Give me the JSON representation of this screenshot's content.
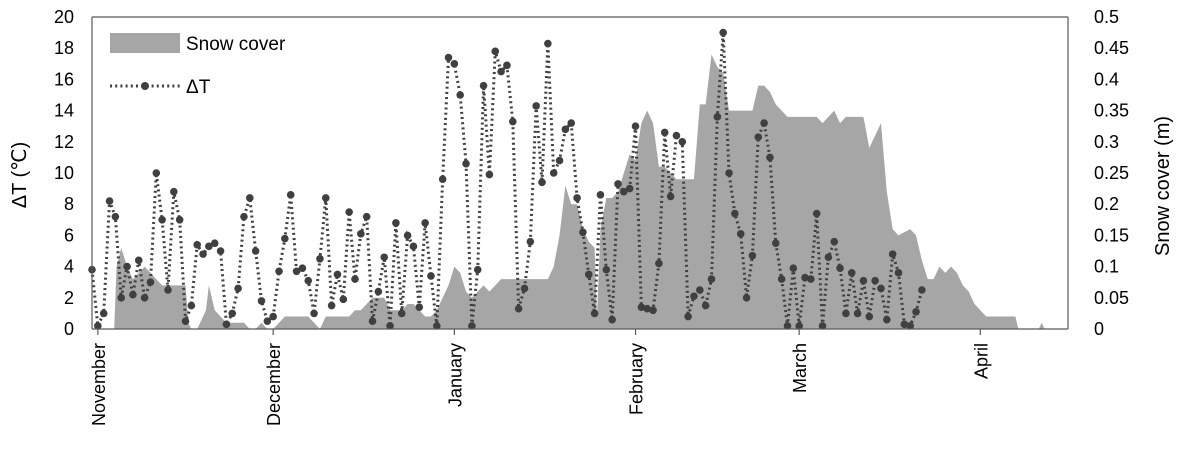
{
  "chart_data": {
    "type": "line",
    "title": "",
    "xlabel": "",
    "ylabel": "ΔT (℃)",
    "y2label": "Snow cover (m)",
    "ylim": [
      0,
      20
    ],
    "y2lim": [
      0,
      0.5
    ],
    "yticks": [
      "0",
      "2",
      "4",
      "6",
      "8",
      "10",
      "12",
      "14",
      "16",
      "18",
      "20"
    ],
    "y2ticks": [
      "0",
      "0.05",
      "0.1",
      "0.15",
      "0.2",
      "0.25",
      "0.3",
      "0.35",
      "0.4",
      "0.45",
      "0.5"
    ],
    "xlim": [
      0,
      167
    ],
    "months": [
      {
        "label": "November",
        "day": 1
      },
      {
        "label": "December",
        "day": 31
      },
      {
        "label": "January",
        "day": 62
      },
      {
        "label": "February",
        "day": 93
      },
      {
        "label": "March",
        "day": 121
      },
      {
        "label": "April",
        "day": 152
      }
    ],
    "legend_position": "top-left",
    "grid": false,
    "series": [
      {
        "name": "Snow cover",
        "kind": "area",
        "color": "#a6a6a6",
        "axis": "right",
        "points": [
          [
            0,
            0
          ],
          [
            3.8,
            0
          ],
          [
            4.2,
            0.1
          ],
          [
            5,
            0.13
          ],
          [
            6,
            0.1
          ],
          [
            7,
            0.08
          ],
          [
            8,
            0.09
          ],
          [
            9,
            0.1
          ],
          [
            10,
            0.09
          ],
          [
            11,
            0.08
          ],
          [
            12,
            0.07
          ],
          [
            15,
            0.07
          ],
          [
            16,
            0.07
          ],
          [
            16.5,
            0.01
          ],
          [
            17,
            0
          ],
          [
            18,
            0
          ],
          [
            19.5,
            0.03
          ],
          [
            20,
            0.07
          ],
          [
            21,
            0.03
          ],
          [
            22,
            0.02
          ],
          [
            23,
            0.01
          ],
          [
            25,
            0.01
          ],
          [
            26,
            0.01
          ],
          [
            27,
            0
          ],
          [
            28,
            0
          ],
          [
            29,
            0.01
          ],
          [
            30,
            0
          ],
          [
            31,
            0
          ],
          [
            32,
            0.01
          ],
          [
            33,
            0.02
          ],
          [
            35,
            0.02
          ],
          [
            36,
            0.02
          ],
          [
            37,
            0.02
          ],
          [
            38,
            0.01
          ],
          [
            39,
            0
          ],
          [
            40,
            0.02
          ],
          [
            41,
            0.02
          ],
          [
            42,
            0.02
          ],
          [
            43,
            0.02
          ],
          [
            44,
            0.02
          ],
          [
            45,
            0.03
          ],
          [
            46,
            0.03
          ],
          [
            47,
            0.04
          ],
          [
            48,
            0.05
          ],
          [
            49,
            0.05
          ],
          [
            50,
            0.05
          ],
          [
            51,
            0.03
          ],
          [
            52,
            0.03
          ],
          [
            53,
            0.03
          ],
          [
            54,
            0.04
          ],
          [
            55,
            0.04
          ],
          [
            56,
            0.03
          ],
          [
            57,
            0.02
          ],
          [
            58,
            0.02
          ],
          [
            59,
            0.03
          ],
          [
            60,
            0.05
          ],
          [
            61,
            0.07
          ],
          [
            62,
            0.1
          ],
          [
            63,
            0.09
          ],
          [
            64,
            0.06
          ],
          [
            65,
            0.05
          ],
          [
            66,
            0.06
          ],
          [
            67,
            0.07
          ],
          [
            68,
            0.06
          ],
          [
            69,
            0.07
          ],
          [
            70,
            0.08
          ],
          [
            78,
            0.08
          ],
          [
            79,
            0.1
          ],
          [
            80,
            0.15
          ],
          [
            81,
            0.23
          ],
          [
            82,
            0.2
          ],
          [
            83,
            0.2
          ],
          [
            84,
            0.16
          ],
          [
            85,
            0.14
          ],
          [
            86,
            0.13
          ],
          [
            86.4,
            0.02
          ],
          [
            87,
            0.16
          ],
          [
            88,
            0.21
          ],
          [
            89,
            0.21
          ],
          [
            90,
            0.22
          ],
          [
            91,
            0.25
          ],
          [
            92,
            0.28
          ],
          [
            93,
            0.27
          ],
          [
            94,
            0.33
          ],
          [
            95,
            0.35
          ],
          [
            96,
            0.33
          ],
          [
            97,
            0.26
          ],
          [
            98,
            0.26
          ],
          [
            99,
            0.25
          ],
          [
            100,
            0.24
          ],
          [
            103,
            0.24
          ],
          [
            104,
            0.36
          ],
          [
            105,
            0.36
          ],
          [
            106,
            0.44
          ],
          [
            107,
            0.42
          ],
          [
            108,
            0.41
          ],
          [
            109,
            0.35
          ],
          [
            110,
            0.35
          ],
          [
            113,
            0.35
          ],
          [
            114,
            0.39
          ],
          [
            115,
            0.39
          ],
          [
            116,
            0.38
          ],
          [
            117,
            0.36
          ],
          [
            118,
            0.35
          ],
          [
            119,
            0.34
          ],
          [
            120,
            0.34
          ],
          [
            124,
            0.34
          ],
          [
            125,
            0.33
          ],
          [
            126,
            0.34
          ],
          [
            127,
            0.35
          ],
          [
            128,
            0.33
          ],
          [
            129,
            0.34
          ],
          [
            132,
            0.34
          ],
          [
            133,
            0.29
          ],
          [
            135,
            0.33
          ],
          [
            136,
            0.22
          ],
          [
            137,
            0.16
          ],
          [
            138,
            0.15
          ],
          [
            140,
            0.16
          ],
          [
            141,
            0.15
          ],
          [
            142,
            0.11
          ],
          [
            143,
            0.08
          ],
          [
            144,
            0.08
          ],
          [
            145,
            0.1
          ],
          [
            146,
            0.09
          ],
          [
            147,
            0.1
          ],
          [
            148,
            0.09
          ],
          [
            149,
            0.07
          ],
          [
            150,
            0.06
          ],
          [
            151,
            0.04
          ],
          [
            152,
            0.03
          ],
          [
            153,
            0.02
          ],
          [
            158,
            0.02
          ],
          [
            158.5,
            0
          ],
          [
            162,
            0
          ],
          [
            162.5,
            0.01
          ],
          [
            163,
            0
          ]
        ]
      },
      {
        "name": "ΔT",
        "kind": "line",
        "color": "#404040",
        "axis": "left",
        "points": [
          [
            0,
            3.8
          ],
          [
            1,
            0.2
          ],
          [
            2,
            1.0
          ],
          [
            3,
            8.2
          ],
          [
            4,
            7.2
          ],
          [
            5,
            2.0
          ],
          [
            6,
            4.0
          ],
          [
            7,
            2.2
          ],
          [
            8,
            4.4
          ],
          [
            9,
            2.0
          ],
          [
            10,
            3.0
          ],
          [
            11,
            10.0
          ],
          [
            12,
            7.0
          ],
          [
            13,
            2.5
          ],
          [
            14,
            8.8
          ],
          [
            15,
            7.0
          ],
          [
            16,
            0.5
          ],
          [
            17,
            1.5
          ],
          [
            18,
            5.4
          ],
          [
            19,
            4.8
          ],
          [
            20,
            5.3
          ],
          [
            21,
            5.5
          ],
          [
            22,
            5.0
          ],
          [
            23,
            0.3
          ],
          [
            24,
            1.0
          ],
          [
            25,
            2.6
          ],
          [
            26,
            7.2
          ],
          [
            27,
            8.4
          ],
          [
            28,
            5.0
          ],
          [
            29,
            1.8
          ],
          [
            30,
            0.5
          ],
          [
            31,
            0.8
          ],
          [
            32,
            3.7
          ],
          [
            33,
            5.8
          ],
          [
            34,
            8.6
          ],
          [
            35,
            3.7
          ],
          [
            36,
            3.9
          ],
          [
            37,
            3.1
          ],
          [
            38,
            1.0
          ],
          [
            39,
            4.5
          ],
          [
            40,
            8.4
          ],
          [
            41,
            1.5
          ],
          [
            42,
            3.5
          ],
          [
            43,
            1.9
          ],
          [
            44,
            7.5
          ],
          [
            45,
            3.2
          ],
          [
            46,
            6.1
          ],
          [
            47,
            7.2
          ],
          [
            48,
            0.5
          ],
          [
            49,
            2.4
          ],
          [
            50,
            4.6
          ],
          [
            51,
            0.2
          ],
          [
            52,
            6.8
          ],
          [
            53,
            1.0
          ],
          [
            54,
            6.0
          ],
          [
            55,
            5.3
          ],
          [
            56,
            1.4
          ],
          [
            57,
            6.8
          ],
          [
            58,
            3.4
          ],
          [
            59,
            0.2
          ],
          [
            60,
            9.6
          ],
          [
            61,
            17.4
          ],
          [
            62,
            17.0
          ],
          [
            63,
            15.0
          ],
          [
            64,
            10.6
          ],
          [
            65,
            0.2
          ],
          [
            66,
            3.8
          ],
          [
            67,
            15.6
          ],
          [
            68,
            9.9
          ],
          [
            69,
            17.8
          ],
          [
            70,
            16.5
          ],
          [
            71,
            16.9
          ],
          [
            72,
            13.3
          ],
          [
            73,
            1.3
          ],
          [
            74,
            2.6
          ],
          [
            75,
            5.6
          ],
          [
            76,
            14.3
          ],
          [
            77,
            9.4
          ],
          [
            78,
            18.3
          ],
          [
            79,
            10.0
          ],
          [
            80,
            10.8
          ],
          [
            81,
            12.8
          ],
          [
            82,
            13.2
          ],
          [
            83,
            8.4
          ],
          [
            84,
            6.2
          ],
          [
            85,
            3.5
          ],
          [
            86,
            1.0
          ],
          [
            87,
            8.6
          ],
          [
            88,
            3.8
          ],
          [
            89,
            0.6
          ],
          [
            90,
            9.3
          ],
          [
            91,
            8.8
          ],
          [
            92,
            9.0
          ],
          [
            93,
            13.0
          ],
          [
            94,
            1.4
          ],
          [
            95,
            1.3
          ],
          [
            96,
            1.2
          ],
          [
            97,
            4.2
          ],
          [
            98,
            12.6
          ],
          [
            99,
            8.5
          ],
          [
            100,
            12.4
          ],
          [
            101,
            12.0
          ],
          [
            102,
            0.8
          ],
          [
            103,
            2.1
          ],
          [
            104,
            2.5
          ],
          [
            105,
            1.5
          ],
          [
            106,
            3.2
          ],
          [
            107,
            13.6
          ],
          [
            108,
            19.0
          ],
          [
            109,
            10.0
          ],
          [
            110,
            7.4
          ],
          [
            111,
            6.1
          ],
          [
            112,
            2.0
          ],
          [
            113,
            4.7
          ],
          [
            114,
            12.3
          ],
          [
            115,
            13.2
          ],
          [
            116,
            11.0
          ],
          [
            117,
            5.5
          ],
          [
            118,
            3.2
          ],
          [
            119,
            0.2
          ],
          [
            120,
            3.9
          ],
          [
            121,
            0.2
          ],
          [
            122,
            3.3
          ],
          [
            123,
            3.2
          ],
          [
            124,
            7.4
          ],
          [
            125,
            0.2
          ],
          [
            126,
            4.6
          ],
          [
            127,
            5.6
          ],
          [
            128,
            3.9
          ],
          [
            129,
            1.0
          ],
          [
            130,
            3.6
          ],
          [
            131,
            1.0
          ],
          [
            132,
            3.1
          ],
          [
            133,
            0.8
          ],
          [
            134,
            3.1
          ],
          [
            135,
            2.6
          ],
          [
            136,
            0.6
          ],
          [
            137,
            4.8
          ],
          [
            138,
            3.6
          ],
          [
            139,
            0.3
          ],
          [
            140,
            0.2
          ],
          [
            141,
            1.1
          ],
          [
            142,
            2.5
          ]
        ]
      }
    ]
  }
}
